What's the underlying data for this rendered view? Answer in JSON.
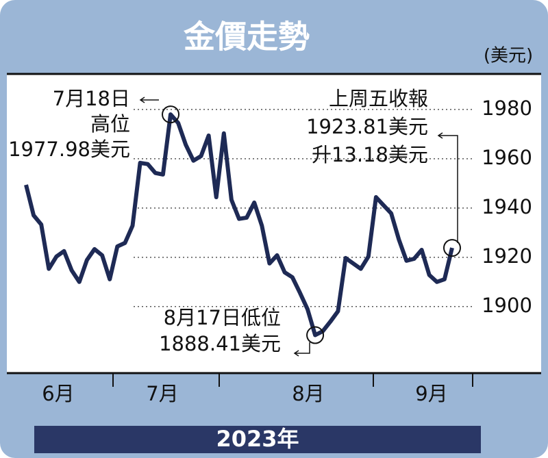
{
  "chart_data": {
    "type": "line",
    "title": "金價走勢",
    "unit_label": "(美元)",
    "x_axis_title": "2023年",
    "month_labels": [
      "6月",
      "7月",
      "8月",
      "9月"
    ],
    "series": [
      {
        "name": "金價",
        "color": "#1e2a55",
        "values": [
          1949.4,
          1937,
          1933.3,
          1915.3,
          1920.3,
          1922.5,
          1914.7,
          1910,
          1918.9,
          1923.3,
          1920.8,
          1911.1,
          1924.4,
          1925.8,
          1932.8,
          1958.3,
          1957.8,
          1954.2,
          1953.6,
          1977.98,
          1974.5,
          1965.6,
          1959.2,
          1961.1,
          1969.4,
          1944.4,
          1970.3,
          1943.3,
          1935.6,
          1936.1,
          1942.2,
          1932.8,
          1917.5,
          1920.8,
          1913.9,
          1911.9,
          1905.6,
          1898.9,
          1888.41,
          1890,
          1893.9,
          1898.1,
          1919.7,
          1917.5,
          1915.3,
          1920.3,
          1944.4,
          1941.1,
          1937.8,
          1927.2,
          1918.6,
          1919.4,
          1923,
          1912.8,
          1910,
          1911.1,
          1923.81
        ]
      }
    ],
    "ylim": [
      1873,
      1994.4
    ],
    "yticks": [
      1900,
      1920,
      1940,
      1960,
      1980
    ],
    "grid": true,
    "annotations": [
      {
        "lines": [
          "7月18日",
          "高位",
          "1977.98美元"
        ]
      },
      {
        "lines": [
          "8月17日低位",
          "1888.41美元"
        ]
      },
      {
        "lines": [
          "上周五收報",
          "1923.81美元",
          "升13.18美元"
        ]
      }
    ]
  }
}
